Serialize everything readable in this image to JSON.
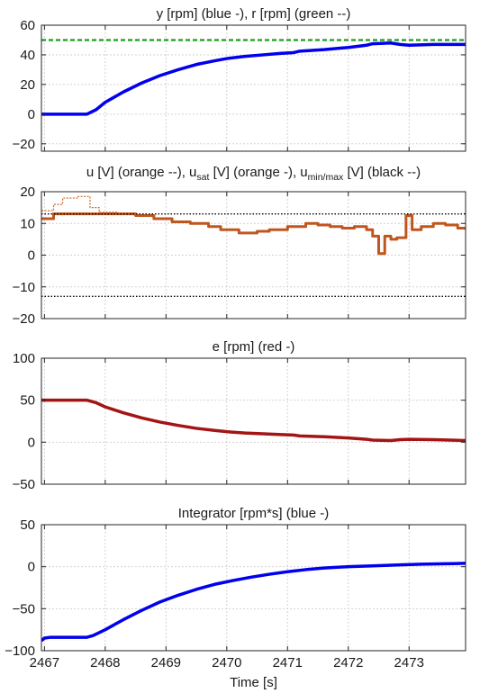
{
  "chart_data": [
    {
      "type": "line",
      "title": "y [rpm] (blue -), r [rpm] (green --)",
      "xlim": [
        2466.95,
        2473.93
      ],
      "ylim": [
        -25,
        60
      ],
      "yticks": [
        -20,
        0,
        20,
        40,
        60
      ],
      "grid": true,
      "series": [
        {
          "name": "y [rpm]",
          "color": "#0000ee",
          "style": "solid",
          "x": [
            2466.95,
            2467.7,
            2467.85,
            2468.0,
            2468.3,
            2468.6,
            2468.9,
            2469.2,
            2469.5,
            2469.8,
            2470.0,
            2470.3,
            2470.6,
            2470.9,
            2471.1,
            2471.2,
            2471.6,
            2472.0,
            2472.3,
            2472.4,
            2472.7,
            2472.85,
            2473.0,
            2473.4,
            2473.93
          ],
          "y": [
            0,
            0,
            3,
            8,
            15,
            21,
            26,
            30,
            33.5,
            36,
            37.5,
            39,
            40,
            41,
            41.5,
            42.5,
            43.5,
            45,
            46.5,
            47.5,
            48,
            47,
            46.5,
            47,
            47
          ]
        },
        {
          "name": "r [rpm]",
          "color": "#1a9e1a",
          "style": "dashed",
          "x": [
            2466.95,
            2473.93
          ],
          "y": [
            50,
            50
          ]
        }
      ]
    },
    {
      "type": "line",
      "title": "u [V] (orange --), u",
      "title_parts": [
        "u [V] (orange --), u",
        "sat",
        " [V] (orange -), u",
        "min/max",
        " [V] (black --)"
      ],
      "xlim": [
        2466.95,
        2473.93
      ],
      "ylim": [
        -20,
        20
      ],
      "yticks": [
        -20,
        -10,
        0,
        10,
        20
      ],
      "grid": true,
      "series": [
        {
          "name": "u [V]",
          "color": "#cc6a28",
          "style": "dashed",
          "step": true,
          "x": [
            2466.95,
            2467.15,
            2467.3,
            2467.55,
            2467.75,
            2467.9,
            2468.2,
            2468.5,
            2468.8,
            2469.1,
            2469.4,
            2469.7,
            2469.9,
            2470.2,
            2470.5,
            2470.7,
            2471.0,
            2471.3,
            2471.5,
            2471.7,
            2471.9,
            2472.1,
            2472.3,
            2472.4,
            2472.5,
            2472.6,
            2472.7,
            2472.8,
            2472.95,
            2473.05,
            2473.2,
            2473.4,
            2473.6,
            2473.8,
            2473.93
          ],
          "y": [
            14,
            16,
            18,
            18.5,
            15,
            13.5,
            13,
            12.5,
            11.5,
            10.5,
            10,
            9,
            8,
            7,
            7.5,
            8,
            9,
            10,
            9.5,
            9,
            8.5,
            9,
            8,
            6,
            0.5,
            6,
            5,
            5.5,
            12.5,
            8,
            9,
            10,
            9.5,
            8.5,
            8
          ]
        },
        {
          "name": "u_sat [V]",
          "color": "#c0561d",
          "style": "solid",
          "step": true,
          "x": [
            2466.95,
            2467.15,
            2467.3,
            2467.55,
            2467.75,
            2467.9,
            2468.2,
            2468.5,
            2468.8,
            2469.1,
            2469.4,
            2469.7,
            2469.9,
            2470.2,
            2470.5,
            2470.7,
            2471.0,
            2471.3,
            2471.5,
            2471.7,
            2471.9,
            2472.1,
            2472.3,
            2472.4,
            2472.5,
            2472.6,
            2472.7,
            2472.8,
            2472.95,
            2473.05,
            2473.2,
            2473.4,
            2473.6,
            2473.8,
            2473.93
          ],
          "y": [
            11.5,
            13,
            13,
            13,
            13,
            13,
            13,
            12.5,
            11.5,
            10.5,
            10,
            9,
            8,
            7,
            7.5,
            8,
            9,
            10,
            9.5,
            9,
            8.5,
            9,
            8,
            6,
            0.5,
            6,
            5,
            5.5,
            12.5,
            8,
            9,
            10,
            9.5,
            8.5,
            8
          ]
        },
        {
          "name": "u_max [V]",
          "color": "#000000",
          "style": "dotted",
          "x": [
            2466.95,
            2473.93
          ],
          "y": [
            13,
            13
          ]
        },
        {
          "name": "u_min [V]",
          "color": "#000000",
          "style": "dotted",
          "x": [
            2466.95,
            2473.93
          ],
          "y": [
            -13,
            -13
          ]
        }
      ]
    },
    {
      "type": "line",
      "title": "e [rpm] (red -)",
      "xlim": [
        2466.95,
        2473.93
      ],
      "ylim": [
        -50,
        100
      ],
      "yticks": [
        -50,
        0,
        50,
        100
      ],
      "grid": true,
      "series": [
        {
          "name": "e [rpm]",
          "color": "#a31515",
          "style": "solid",
          "x": [
            2466.95,
            2467.7,
            2467.85,
            2468.0,
            2468.3,
            2468.6,
            2468.9,
            2469.2,
            2469.5,
            2469.8,
            2470.0,
            2470.3,
            2470.6,
            2470.9,
            2471.1,
            2471.2,
            2471.6,
            2472.0,
            2472.3,
            2472.4,
            2472.7,
            2472.85,
            2473.0,
            2473.4,
            2473.93
          ],
          "y": [
            50,
            50,
            47,
            42,
            35,
            29,
            24,
            20,
            16.5,
            14,
            12.5,
            11,
            10,
            9,
            8.5,
            7.5,
            6.5,
            5,
            3.5,
            2.5,
            2,
            3,
            3.5,
            3,
            2
          ]
        }
      ]
    },
    {
      "type": "line",
      "title": "Integrator [rpm*s] (blue -)",
      "xlim": [
        2466.95,
        2473.93
      ],
      "ylim": [
        -100,
        50
      ],
      "yticks": [
        -100,
        -50,
        0,
        50
      ],
      "xticks": [
        2467,
        2468,
        2469,
        2470,
        2471,
        2472,
        2473
      ],
      "xlabel": "Time [s]",
      "grid": true,
      "series": [
        {
          "name": "Integrator [rpm*s]",
          "color": "#0000ee",
          "style": "solid",
          "x": [
            2466.95,
            2467.0,
            2467.1,
            2467.3,
            2467.5,
            2467.7,
            2467.8,
            2468.0,
            2468.3,
            2468.6,
            2468.9,
            2469.2,
            2469.5,
            2469.8,
            2470.1,
            2470.4,
            2470.7,
            2471.0,
            2471.3,
            2471.6,
            2472.0,
            2472.4,
            2472.8,
            2473.2,
            2473.6,
            2473.93
          ],
          "y": [
            -88,
            -85,
            -84,
            -84,
            -84,
            -84,
            -82,
            -75,
            -63,
            -52,
            -42,
            -34,
            -27,
            -21,
            -16.5,
            -12.5,
            -9,
            -6,
            -3.5,
            -1.5,
            0,
            1,
            2,
            3,
            3.5,
            4
          ]
        }
      ]
    }
  ]
}
